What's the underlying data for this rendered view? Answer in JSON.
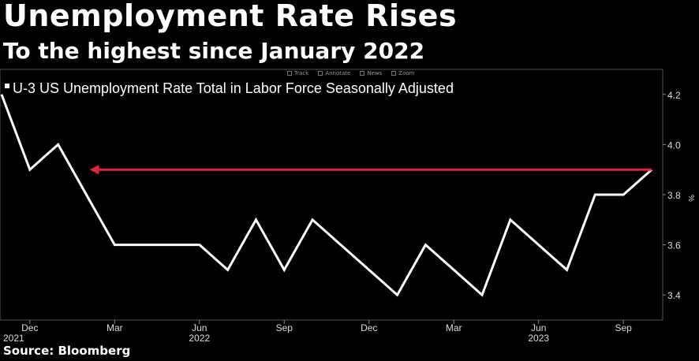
{
  "title": "Unemployment Rate Rises",
  "subtitle": "To the highest since January 2022",
  "source": "Source: Bloomberg",
  "toolbar": {
    "track": "Track",
    "annotate": "Annotate",
    "news": "News",
    "zoom": "Zoom"
  },
  "colors": {
    "background": "#000000",
    "plot_background": "#000000",
    "line": "#ffffff",
    "arrow": "#e8203c",
    "grid": "#3a3a3a",
    "axis_text": "#dddddd"
  },
  "chart_data": {
    "type": "line",
    "title": "",
    "legend_placement": "top-left",
    "grid": true,
    "ylabel": "%",
    "ylim": [
      3.3,
      4.3
    ],
    "yticks": [
      3.4,
      3.6,
      3.8,
      4.0,
      4.2
    ],
    "ytick_labels": [
      "3.4",
      "3.6",
      "3.8",
      "4.0",
      "4.2"
    ],
    "x_period": [
      "2021-11",
      "2023-10"
    ],
    "x_tick_labels": [
      {
        "x": "2021-12",
        "label": "Dec",
        "year": "2021"
      },
      {
        "x": "2022-03",
        "label": "Mar",
        "year": ""
      },
      {
        "x": "2022-06",
        "label": "Jun",
        "year": "2022"
      },
      {
        "x": "2022-09",
        "label": "Sep",
        "year": ""
      },
      {
        "x": "2022-12",
        "label": "Dec",
        "year": ""
      },
      {
        "x": "2023-03",
        "label": "Mar",
        "year": ""
      },
      {
        "x": "2023-06",
        "label": "Jun",
        "year": "2023"
      },
      {
        "x": "2023-09",
        "label": "Sep",
        "year": ""
      }
    ],
    "series": [
      {
        "name": "U-3 US Unemployment Rate Total in Labor Force Seasonally Adjusted",
        "x": [
          "2021-11",
          "2021-12",
          "2022-01",
          "2022-02",
          "2022-03",
          "2022-04",
          "2022-05",
          "2022-06",
          "2022-07",
          "2022-08",
          "2022-09",
          "2022-10",
          "2022-11",
          "2022-12",
          "2023-01",
          "2023-02",
          "2023-03",
          "2023-04",
          "2023-05",
          "2023-06",
          "2023-07",
          "2023-08",
          "2023-09",
          "2023-10"
        ],
        "values": [
          4.2,
          3.9,
          4.0,
          3.8,
          3.6,
          3.6,
          3.6,
          3.6,
          3.5,
          3.7,
          3.5,
          3.7,
          3.6,
          3.5,
          3.4,
          3.6,
          3.5,
          3.4,
          3.7,
          3.6,
          3.5,
          3.8,
          3.8,
          3.9
        ]
      }
    ],
    "annotations": [
      {
        "type": "arrow",
        "from": {
          "x": "2023-10",
          "y": 3.9
        },
        "to": {
          "x": "2022-02",
          "y": 3.9
        }
      }
    ]
  }
}
